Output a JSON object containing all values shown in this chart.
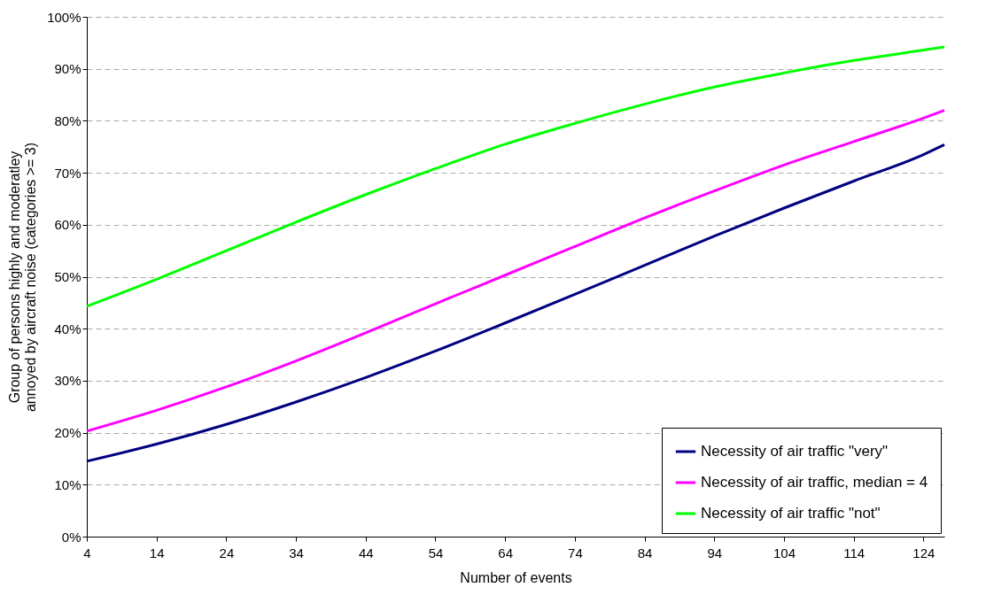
{
  "chart_data": {
    "type": "line",
    "xlabel": "Number of events",
    "ylabel": "Group of persons highly and moderatley annoyed by aircraft noise (categories >= 3)",
    "x": [
      4,
      14,
      24,
      34,
      44,
      54,
      64,
      74,
      84,
      94,
      104,
      114,
      124,
      127
    ],
    "series": [
      {
        "name": "Necessity of air traffic \"very\"",
        "color": "#000080",
        "values": [
          14.5,
          17.8,
          21.6,
          25.9,
          30.6,
          35.7,
          41.1,
          46.6,
          52.2,
          57.8,
          63.2,
          68.4,
          73.5,
          75.4
        ]
      },
      {
        "name": "Necessity of air traffic, median = 4",
        "color": "#ff00ff",
        "values": [
          20.3,
          24.3,
          28.8,
          33.8,
          39.2,
          44.8,
          50.3,
          55.8,
          61.3,
          66.5,
          71.5,
          76,
          80.5,
          82
        ]
      },
      {
        "name": "Necessity of air traffic \"not\"",
        "color": "#00ff00",
        "values": [
          44.3,
          49.5,
          55,
          60.5,
          65.8,
          70.8,
          75.5,
          79.5,
          83.2,
          86.5,
          89.2,
          91.6,
          93.6,
          94.2
        ]
      }
    ],
    "xlim": [
      4,
      127
    ],
    "xticks": [
      4,
      14,
      24,
      34,
      44,
      54,
      64,
      74,
      84,
      94,
      104,
      114,
      124
    ],
    "ylim": [
      0,
      100
    ],
    "yticks": [
      {
        "value": 0,
        "label": "0%"
      },
      {
        "value": 10,
        "label": "10%"
      },
      {
        "value": 20,
        "label": "20%"
      },
      {
        "value": 30,
        "label": "30%"
      },
      {
        "value": 40,
        "label": "40%"
      },
      {
        "value": 50,
        "label": "50%"
      },
      {
        "value": 60,
        "label": "60%"
      },
      {
        "value": 70,
        "label": "70%"
      },
      {
        "value": 80,
        "label": "80%"
      },
      {
        "value": 90,
        "label": "90%"
      },
      {
        "value": 100,
        "label": "100%"
      }
    ],
    "grid": "y",
    "legend": "bottom right",
    "marker": "none",
    "line_style": "solid"
  }
}
